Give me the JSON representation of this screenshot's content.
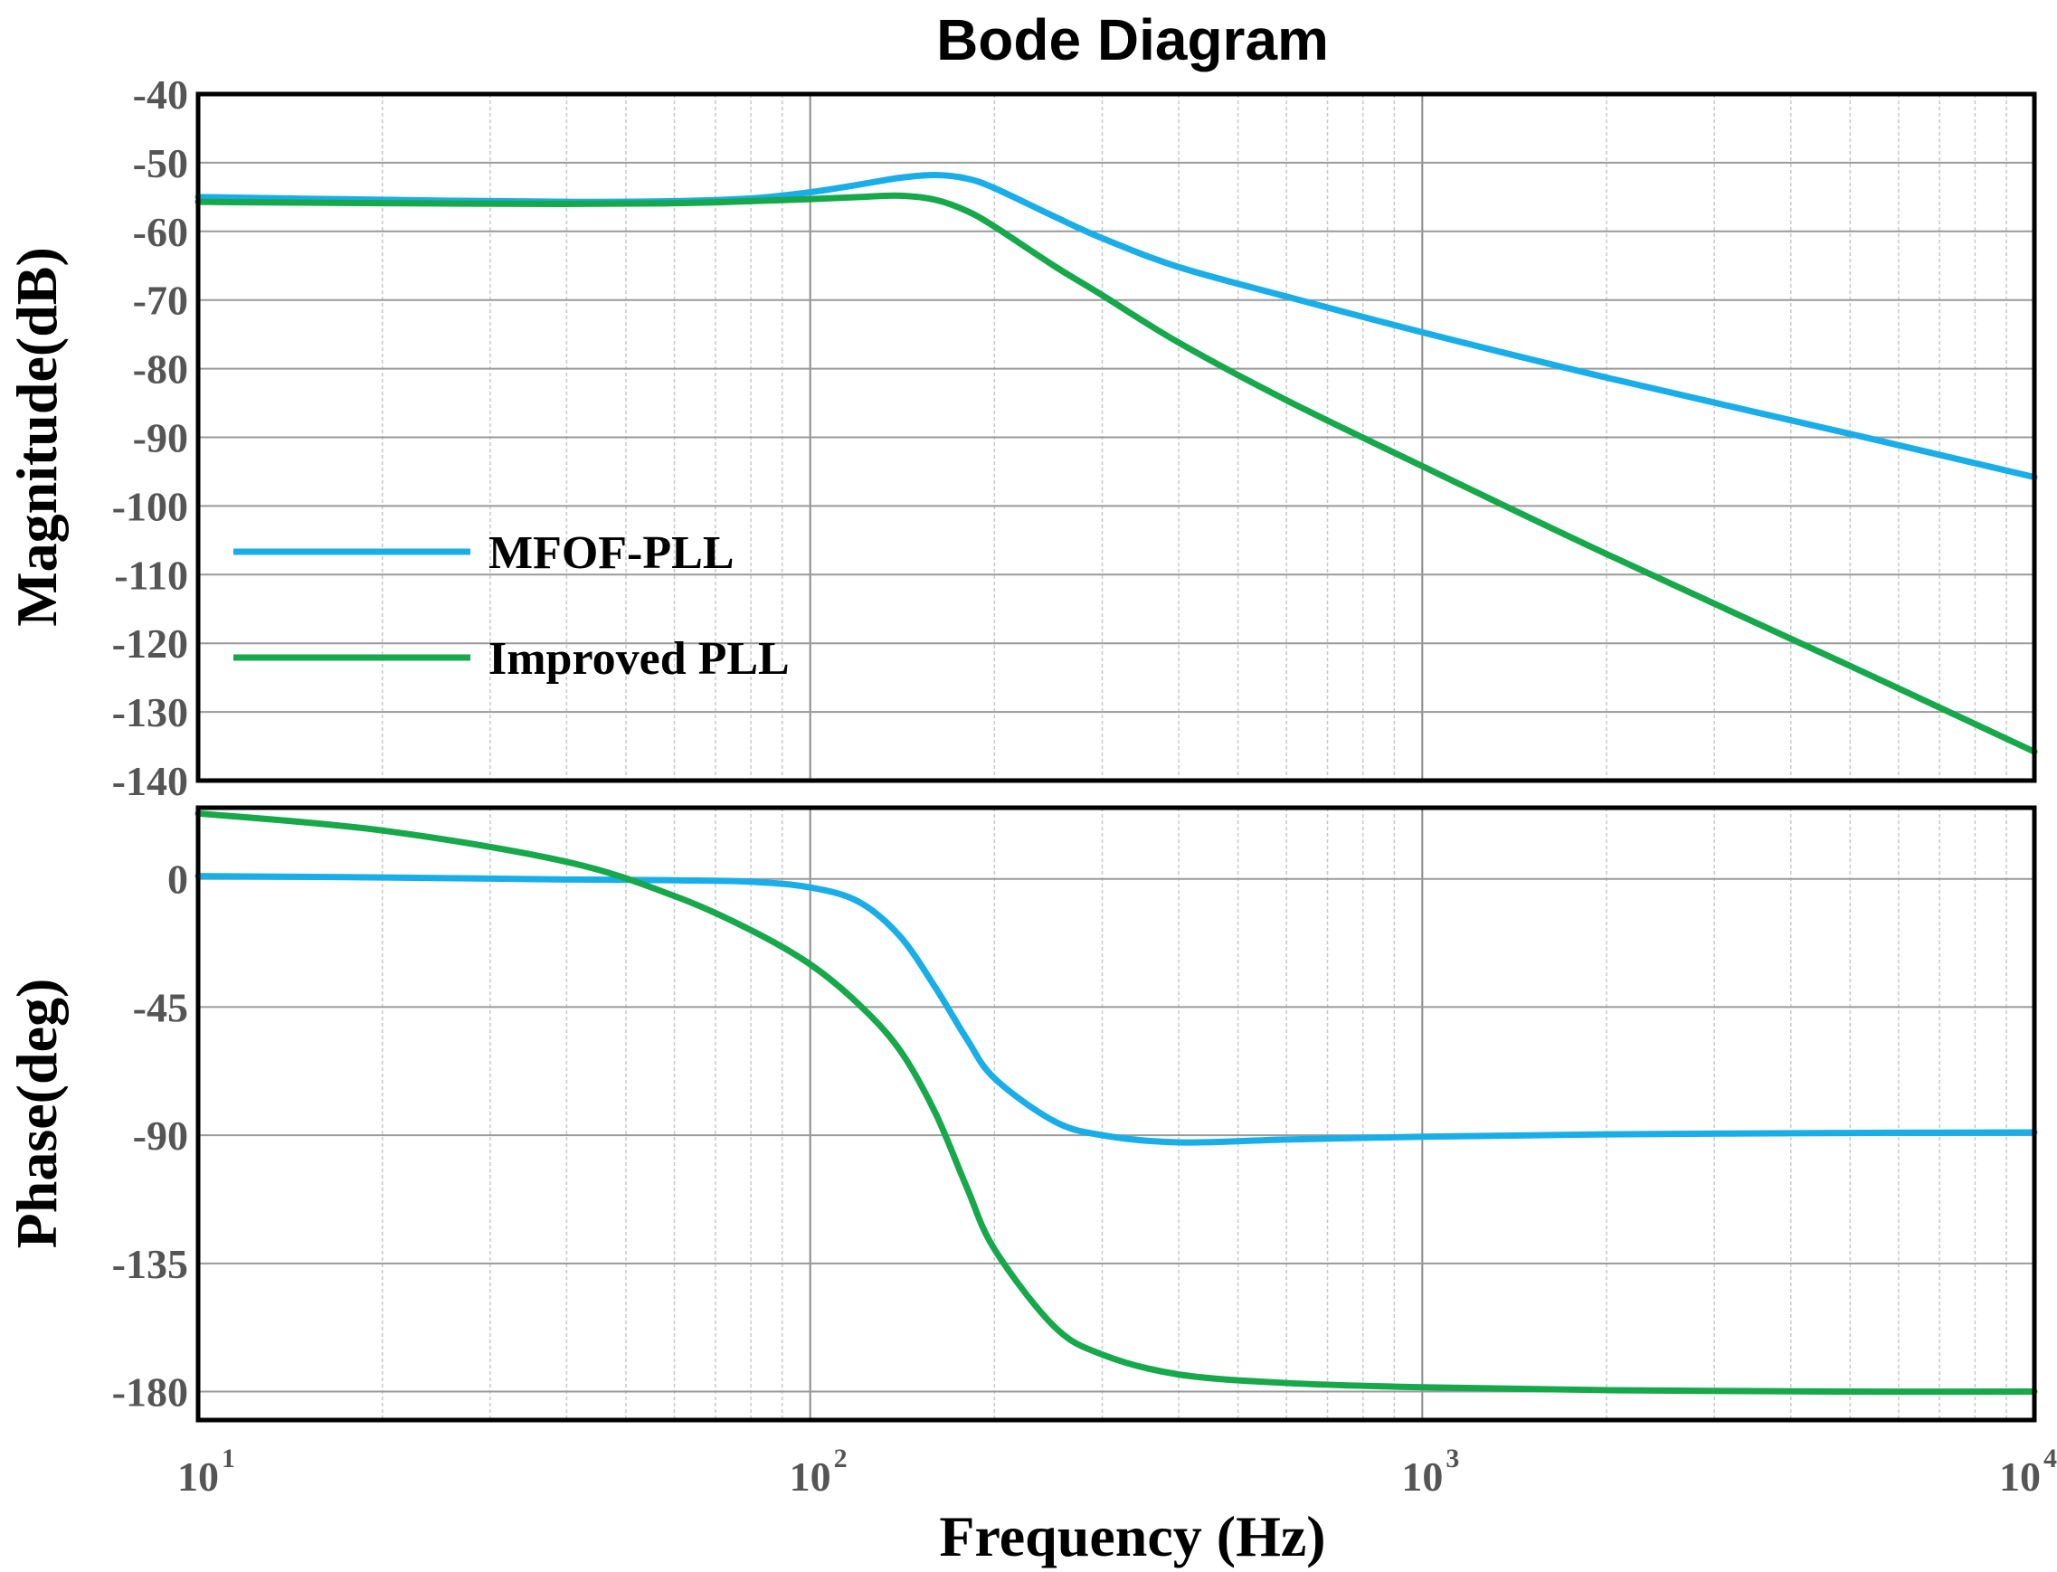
{
  "chart_data": {
    "type": "line",
    "title": "Bode Diagram",
    "xlabel": "Frequency  (Hz)",
    "xscale": "log",
    "xlim": [
      10,
      10000
    ],
    "xticks": [
      {
        "base": "10",
        "exp": "1"
      },
      {
        "base": "10",
        "exp": "2"
      },
      {
        "base": "10",
        "exp": "3"
      },
      {
        "base": "10",
        "exp": "4"
      }
    ],
    "colors": {
      "MFOF-PLL": "#1aaee8",
      "Improved PLL": "#16a84a"
    },
    "legend": {
      "placement": "center-left of magnitude panel",
      "entries": [
        "MFOF-PLL",
        "Improved PLL"
      ]
    },
    "panels": [
      {
        "name": "magnitude",
        "ylabel": "Magnitude(dB)",
        "ylim": [
          -140,
          -40
        ],
        "yticks": [
          "-40",
          "-50",
          "-60",
          "-70",
          "-80",
          "-90",
          "-100",
          "-110",
          "-120",
          "-130",
          "-140"
        ],
        "series": [
          {
            "name": "MFOF-PLL",
            "x": [
              10,
              20,
              40,
              60,
              80,
              100,
              120,
              140,
              160,
              180,
              200,
              250,
              300,
              400,
              600,
              1000,
              2000,
              5000,
              10000
            ],
            "y": [
              -55,
              -55.4,
              -55.7,
              -55.6,
              -55.2,
              -54.3,
              -53.2,
              -52.2,
              -51.8,
              -52.3,
              -53.7,
              -57.8,
              -61,
              -65.2,
              -69.5,
              -74.7,
              -81.3,
              -89.5,
              -95.8
            ]
          },
          {
            "name": "Improved PLL",
            "x": [
              10,
              20,
              40,
              60,
              80,
              100,
              120,
              140,
              160,
              180,
              200,
              250,
              300,
              400,
              600,
              1000,
              2000,
              5000,
              10000
            ],
            "y": [
              -55.7,
              -55.9,
              -56,
              -55.9,
              -55.6,
              -55.3,
              -55,
              -54.8,
              -55.4,
              -57,
              -59.3,
              -65,
              -69.3,
              -76.2,
              -84.6,
              -94.2,
              -107,
              -123.3,
              -135.8
            ]
          }
        ]
      },
      {
        "name": "phase",
        "ylabel": "Phase(deg)",
        "ylim": [
          -190,
          25
        ],
        "yticks": [
          "0",
          "-45",
          "-90",
          "-135",
          "-180"
        ],
        "series": [
          {
            "name": "MFOF-PLL",
            "x": [
              10,
              20,
              40,
              60,
              80,
              100,
              120,
              140,
              160,
              180,
              200,
              250,
              300,
              400,
              600,
              1000,
              2000,
              5000,
              10000
            ],
            "y": [
              1,
              0.5,
              -0.2,
              -0.5,
              -1,
              -3,
              -8,
              -20,
              -38,
              -56,
              -70,
              -85,
              -90,
              -92.5,
              -91.5,
              -90.5,
              -89.7,
              -89.2,
              -89
            ]
          },
          {
            "name": "Improved PLL",
            "x": [
              10,
              20,
              40,
              60,
              80,
              100,
              120,
              140,
              160,
              180,
              200,
              250,
              300,
              400,
              600,
              1000,
              2000,
              5000,
              10000
            ],
            "y": [
              23,
              17,
              6,
              -6,
              -18,
              -30,
              -44,
              -60,
              -82,
              -108,
              -130,
              -157,
              -167,
              -174,
              -177,
              -178.5,
              -179.5,
              -180,
              -180
            ]
          }
        ]
      }
    ]
  }
}
